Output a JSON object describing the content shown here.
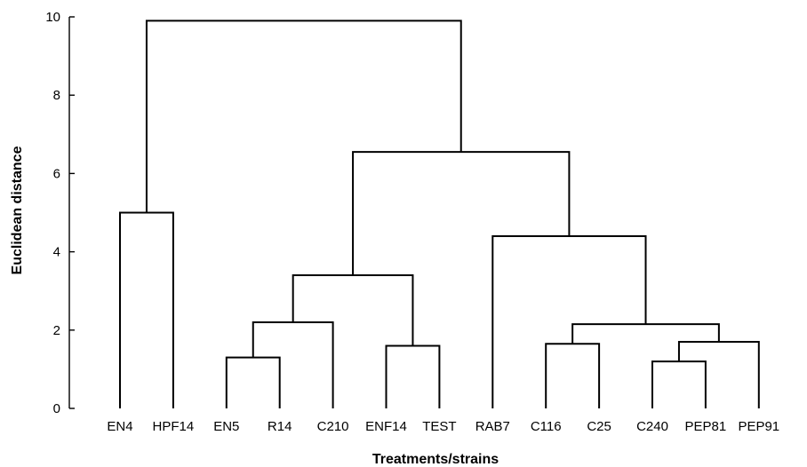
{
  "chart_data": {
    "type": "dendrogram",
    "xlabel": "Treatments/strains",
    "ylabel": "Euclidean distance",
    "ylim": [
      0,
      10
    ],
    "yticks": [
      0,
      2,
      4,
      6,
      8,
      10
    ],
    "grid": false,
    "leaves": [
      "EN4",
      "HPF14",
      "EN5",
      "R14",
      "C210",
      "ENF14",
      "TEST",
      "RAB7",
      "C116",
      "C25",
      "C240",
      "PEP81",
      "PEP91"
    ],
    "merges": [
      {
        "a": "EN4",
        "b": "HPF14",
        "height": 5.0
      },
      {
        "a": "EN5",
        "b": "R14",
        "height": 1.3
      },
      {
        "a": "EN5+R14",
        "b": "C210",
        "height": 2.2
      },
      {
        "a": "ENF14",
        "b": "TEST",
        "height": 1.6
      },
      {
        "a": "EN5+R14+C210",
        "b": "ENF14+TEST",
        "height": 3.4
      },
      {
        "a": "C116",
        "b": "C25",
        "height": 1.65
      },
      {
        "a": "C240",
        "b": "PEP81",
        "height": 1.2
      },
      {
        "a": "C240+PEP81",
        "b": "PEP91",
        "height": 1.7
      },
      {
        "a": "C116+C25",
        "b": "C240+PEP81+PEP91",
        "height": 2.15
      },
      {
        "a": "RAB7",
        "b": "C116+C25+C240+PEP81+PEP91",
        "height": 4.4
      },
      {
        "a": "EN5+R14+C210+ENF14+TEST",
        "b": "RAB7+C116+C25+C240+PEP81+PEP91",
        "height": 6.55
      },
      {
        "a": "EN4+HPF14",
        "b": "EN5+R14+C210+ENF14+TEST+RAB7+C116+C25+C240+PEP81+PEP91",
        "height": 9.9
      }
    ]
  }
}
